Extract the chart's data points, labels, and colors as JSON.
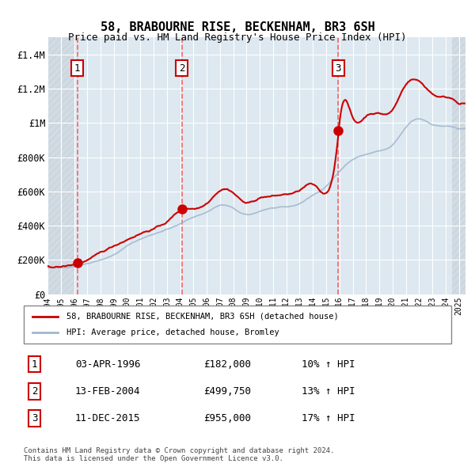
{
  "title": "58, BRABOURNE RISE, BECKENHAM, BR3 6SH",
  "subtitle": "Price paid vs. HM Land Registry's House Price Index (HPI)",
  "xlabel": "",
  "ylabel": "",
  "ylim": [
    0,
    1500000
  ],
  "yticks": [
    0,
    200000,
    400000,
    600000,
    800000,
    1000000,
    1200000,
    1400000
  ],
  "ytick_labels": [
    "£0",
    "£200K",
    "£400K",
    "£600K",
    "£800K",
    "£1M",
    "£1.2M",
    "£1.4M"
  ],
  "background_color": "#dde8f0",
  "plot_bg_color": "#dde8f0",
  "grid_color": "#ffffff",
  "hpi_line_color": "#a0b8d0",
  "price_line_color": "#cc0000",
  "purchase_marker_color": "#cc0000",
  "purchase_dates": [
    1996.25,
    2004.12,
    2015.92
  ],
  "purchase_prices": [
    182000,
    499750,
    955000
  ],
  "purchase_labels": [
    "1",
    "2",
    "3"
  ],
  "legend_label_price": "58, BRABOURNE RISE, BECKENHAM, BR3 6SH (detached house)",
  "legend_label_hpi": "HPI: Average price, detached house, Bromley",
  "table_entries": [
    {
      "num": "1",
      "date": "03-APR-1996",
      "price": "£182,000",
      "hpi": "10% ↑ HPI"
    },
    {
      "num": "2",
      "date": "13-FEB-2004",
      "price": "£499,750",
      "hpi": "13% ↑ HPI"
    },
    {
      "num": "3",
      "date": "11-DEC-2015",
      "price": "£955,000",
      "hpi": "17% ↑ HPI"
    }
  ],
  "footer": "Contains HM Land Registry data © Crown copyright and database right 2024.\nThis data is licensed under the Open Government Licence v3.0.",
  "xstart": 1994,
  "xend": 2025.5
}
